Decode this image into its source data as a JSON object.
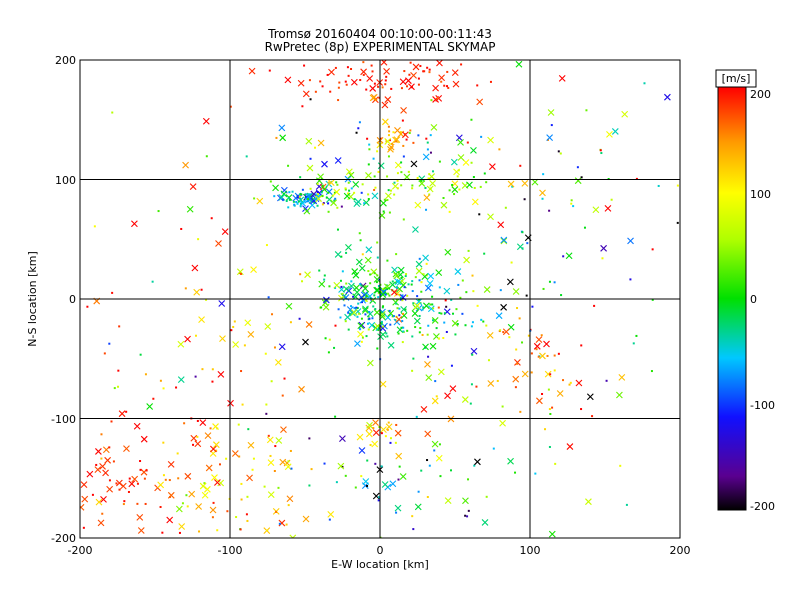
{
  "chart_data": {
    "type": "scatter",
    "title": "Tromsø 20160404 00:10:00-00:11:43",
    "subtitle": "RwPretec (8p) EXPERIMENTAL SKYMAP",
    "xlabel": "E-W location [km]",
    "ylabel": "N-S location [km]",
    "xlim": [
      -200,
      200
    ],
    "ylim": [
      -200,
      200
    ],
    "xticks": [
      "-200",
      "-100",
      "0",
      "100",
      "200"
    ],
    "yticks": [
      "-200",
      "-100",
      "0",
      "100",
      "200"
    ],
    "grid": true,
    "colorbar": {
      "label": "[m/s]",
      "range": [
        -200,
        200
      ],
      "ticks": [
        "200",
        "100",
        "0",
        "-100",
        "-200"
      ]
    },
    "markers": [
      "x",
      "dot"
    ],
    "clusters": [
      {
        "x": -50,
        "y": 85,
        "sx": 8,
        "sy": 4,
        "n": 60,
        "v": -70,
        "sv": 40
      },
      {
        "x": -25,
        "y": 88,
        "sx": 18,
        "sy": 8,
        "n": 70,
        "v": 20,
        "sv": 60
      },
      {
        "x": 35,
        "y": 95,
        "sx": 25,
        "sy": 10,
        "n": 60,
        "v": 60,
        "sv": 45
      },
      {
        "x": -20,
        "y": 185,
        "sx": 40,
        "sy": 10,
        "n": 55,
        "v": 190,
        "sv": 10
      },
      {
        "x": 20,
        "y": 180,
        "sx": 20,
        "sy": 10,
        "n": 35,
        "v": 185,
        "sv": 15
      },
      {
        "x": 10,
        "y": 135,
        "sx": 8,
        "sy": 6,
        "n": 30,
        "v": 155,
        "sv": 30
      },
      {
        "x": 30,
        "y": 130,
        "sx": 60,
        "sy": 12,
        "n": 45,
        "v": 0,
        "sv": 90
      },
      {
        "x": 0,
        "y": 0,
        "sx": 20,
        "sy": 18,
        "n": 260,
        "v": -20,
        "sv": 50
      },
      {
        "x": 40,
        "y": -15,
        "sx": 30,
        "sy": 25,
        "n": 70,
        "v": 20,
        "sv": 90
      },
      {
        "x": -170,
        "y": -150,
        "sx": 25,
        "sy": 35,
        "n": 80,
        "v": 180,
        "sv": 25
      },
      {
        "x": -95,
        "y": -160,
        "sx": 25,
        "sy": 35,
        "n": 85,
        "v": 120,
        "sv": 45
      },
      {
        "x": 20,
        "y": -150,
        "sx": 45,
        "sy": 25,
        "n": 70,
        "v": -20,
        "sv": 100
      },
      {
        "x": 100,
        "y": -60,
        "sx": 30,
        "sy": 25,
        "n": 55,
        "v": 160,
        "sv": 50
      },
      {
        "x": -120,
        "y": -30,
        "sx": 50,
        "sy": 50,
        "n": 60,
        "v": 140,
        "sv": 70
      },
      {
        "x": 100,
        "y": 70,
        "sx": 60,
        "sy": 50,
        "n": 55,
        "v": 0,
        "sv": 110
      },
      {
        "x": 0,
        "y": 0,
        "sx": 120,
        "sy": 110,
        "n": 120,
        "v": 30,
        "sv": 130
      },
      {
        "x": 0,
        "y": -110,
        "sx": 6,
        "sy": 6,
        "n": 20,
        "v": 120,
        "sv": 30
      }
    ]
  }
}
